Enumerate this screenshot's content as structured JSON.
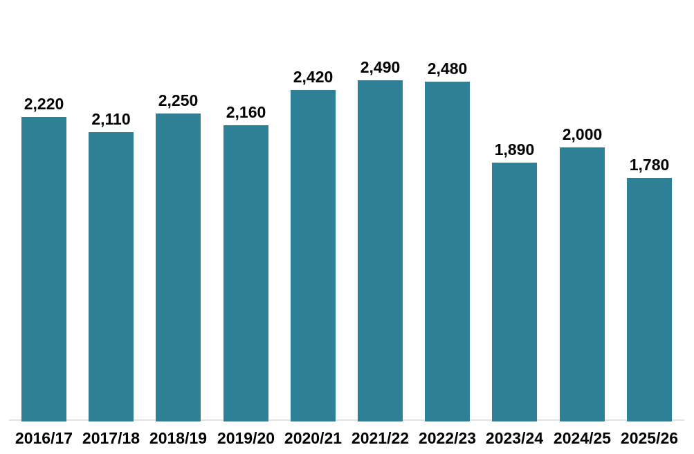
{
  "chart_data": {
    "type": "bar",
    "title": "",
    "xlabel": "",
    "ylabel": "",
    "categories": [
      "2016/17",
      "2017/18",
      "2018/19",
      "2019/20",
      "2020/21",
      "2021/22",
      "2022/23",
      "2023/24",
      "2024/25",
      "2025/26"
    ],
    "values": [
      2220,
      2110,
      2250,
      2160,
      2420,
      2490,
      2480,
      1890,
      2000,
      1780
    ],
    "value_labels": [
      "2,220",
      "2,110",
      "2,250",
      "2,160",
      "2,420",
      "2,490",
      "2,480",
      "1,890",
      "2,000",
      "1,780"
    ],
    "ylim": [
      0,
      2600
    ],
    "grid": false,
    "legend_position": "none",
    "colors": {
      "bar": "#2E8096",
      "axis_line": "#E2E2E2",
      "text": "#000000",
      "background": "#FFFFFF"
    }
  }
}
